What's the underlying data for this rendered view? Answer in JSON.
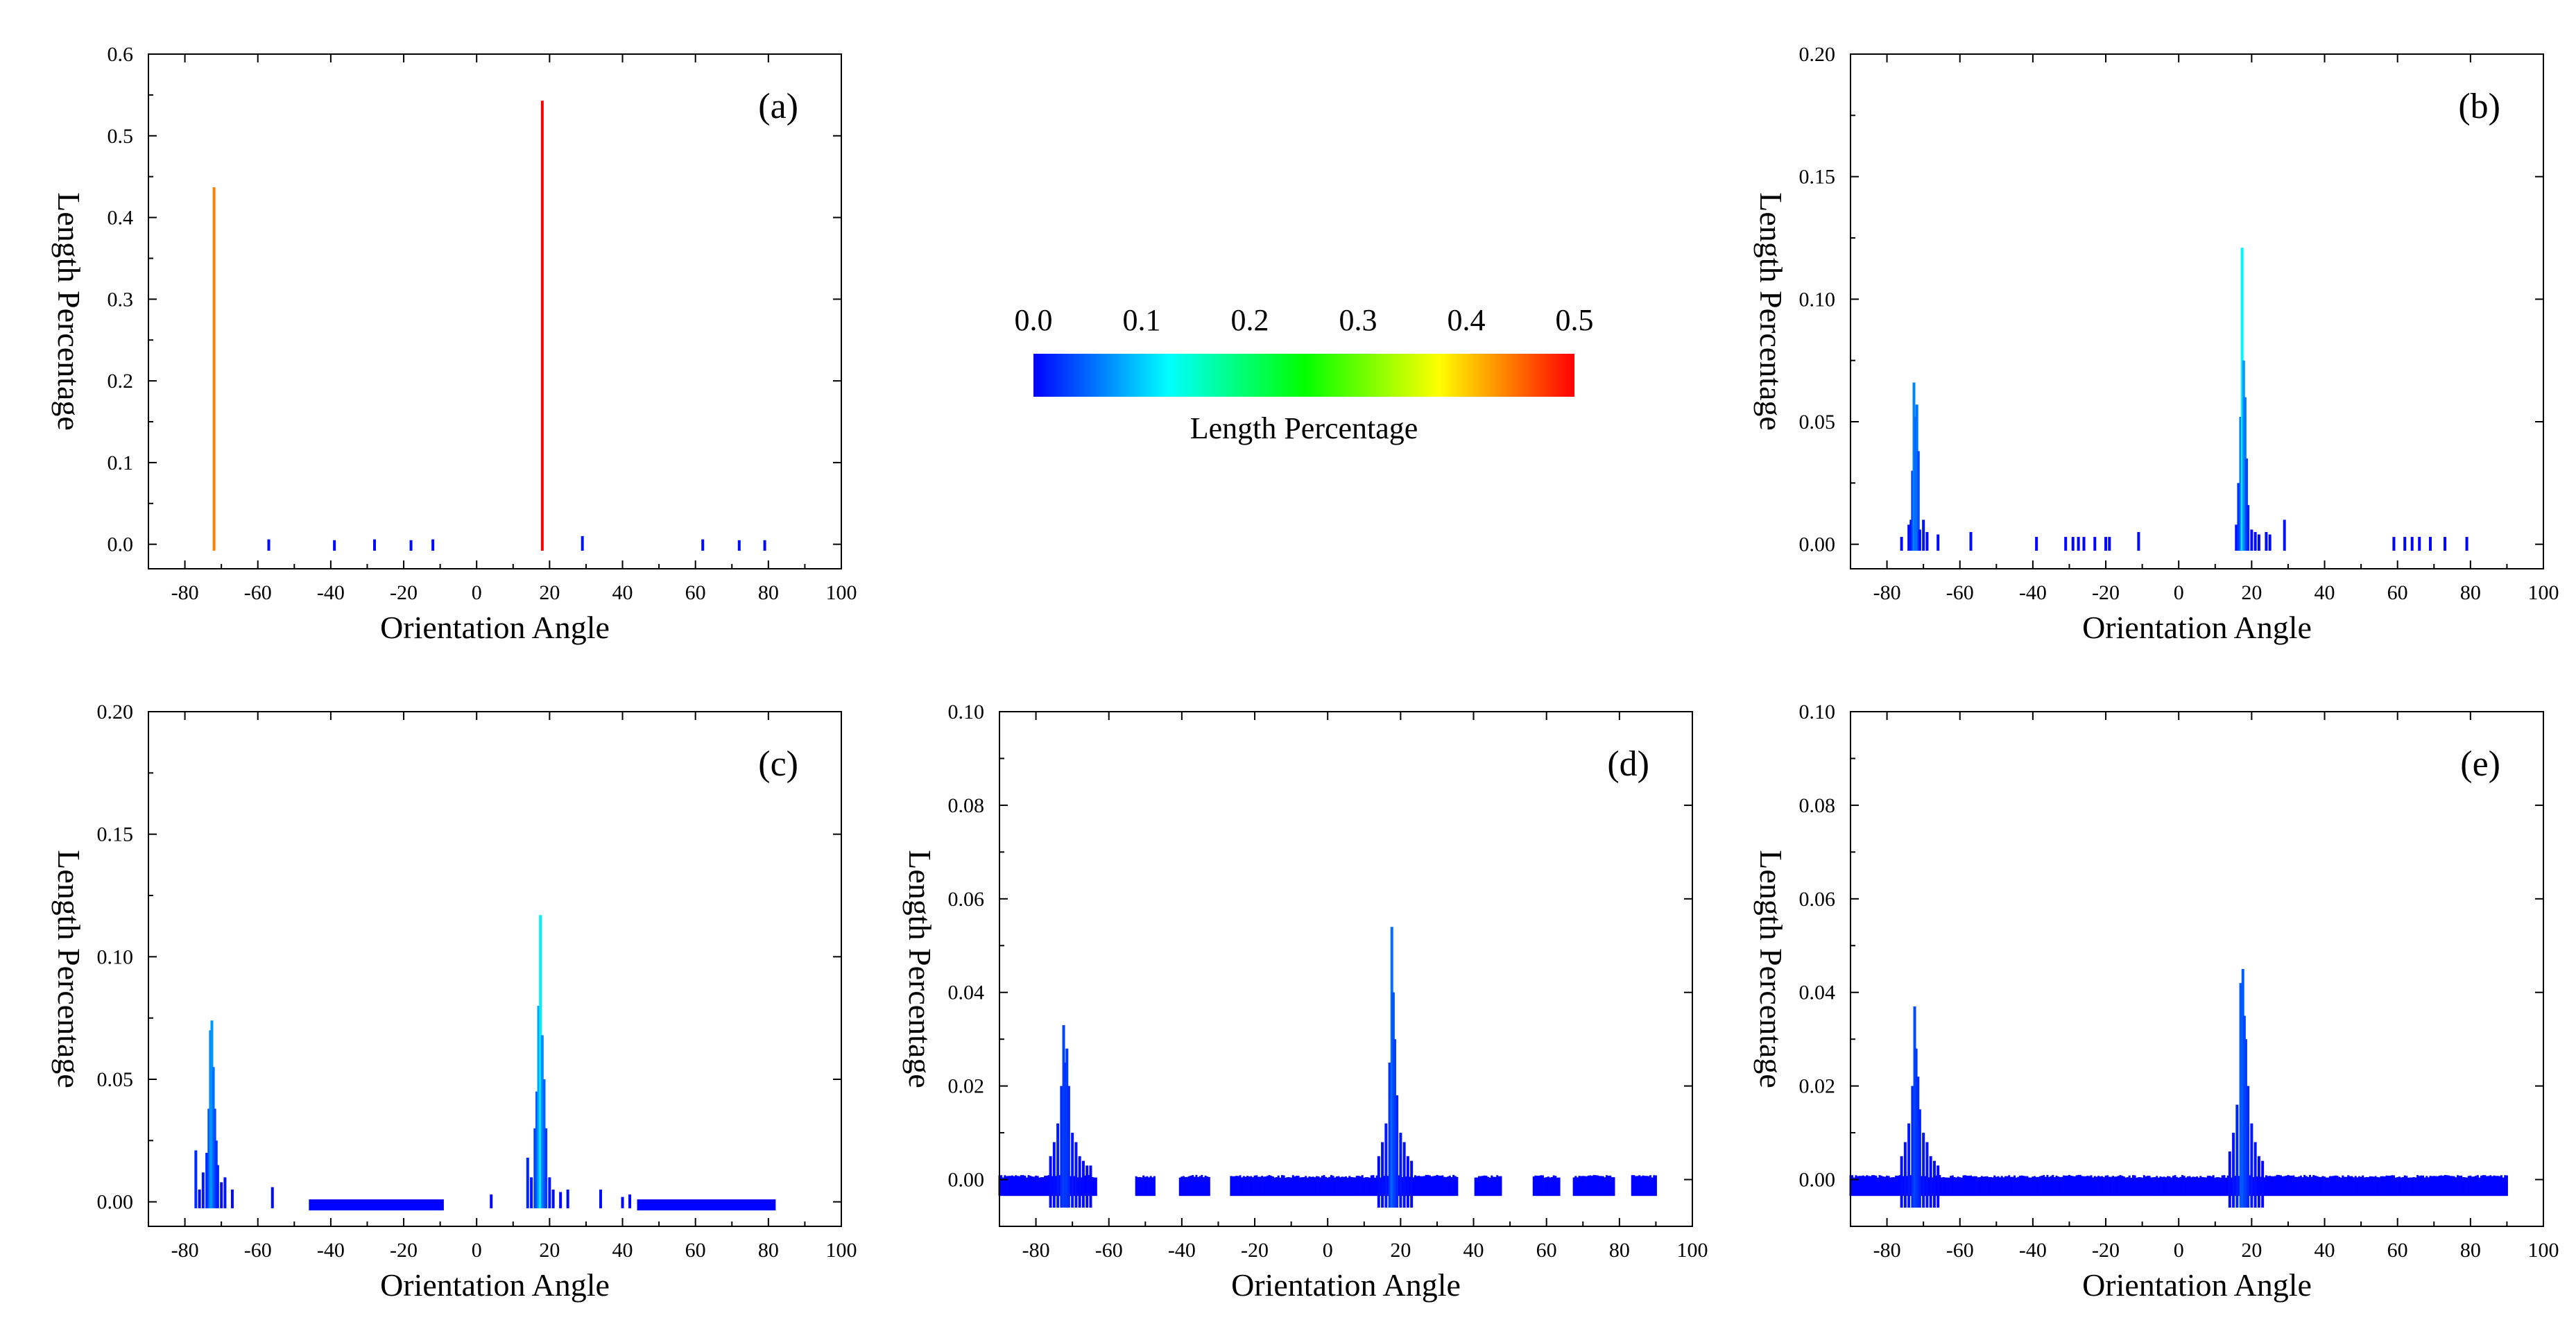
{
  "colorbar": {
    "title": "Length Percentage",
    "ticks": [
      "0.0",
      "0.1",
      "0.2",
      "0.3",
      "0.4",
      "0.5"
    ],
    "range": [
      0,
      0.5
    ],
    "stops": [
      "#0000ff",
      "#00ffff",
      "#00ff00",
      "#ffff00",
      "#ff0000"
    ]
  },
  "chart_data": [
    {
      "type": "bar",
      "panel": "(a)",
      "xlabel": "Orientation Angle",
      "ylabel": "Length Percentage",
      "xlim": [
        -90,
        100
      ],
      "ylim": [
        -0.03,
        0.6
      ],
      "xticks": [
        -80,
        -60,
        -40,
        -20,
        0,
        20,
        40,
        60,
        80,
        100
      ],
      "yticks": [
        0.0,
        0.1,
        0.2,
        0.3,
        0.4,
        0.5,
        0.6
      ],
      "ytick_labels": [
        "0.0",
        "0.1",
        "0.2",
        "0.3",
        "0.4",
        "0.5",
        "0.6"
      ],
      "x": [
        -72,
        18,
        -57,
        -39,
        -28,
        -18,
        -12,
        29,
        62,
        72,
        79
      ],
      "y": [
        0.437,
        0.543,
        0.006,
        0.005,
        0.006,
        0.005,
        0.006,
        0.01,
        0.006,
        0.005,
        0.005
      ]
    },
    {
      "type": "bar",
      "panel": "(b)",
      "xlabel": "Orientation Angle",
      "ylabel": "Length Percentage",
      "xlim": [
        -90,
        100
      ],
      "ylim": [
        -0.01,
        0.2
      ],
      "xticks": [
        -80,
        -60,
        -40,
        -20,
        0,
        20,
        40,
        60,
        80,
        100
      ],
      "yticks": [
        0.0,
        0.05,
        0.1,
        0.15,
        0.2
      ],
      "ytick_labels": [
        "0.00",
        "0.05",
        "0.10",
        "0.15",
        "0.20"
      ],
      "x": [
        -76,
        -74,
        -73.4,
        -73,
        -72.6,
        -72.2,
        -71.8,
        -71.4,
        -71,
        -70,
        -69,
        -66,
        -57,
        -39,
        -31,
        -29,
        -27.5,
        -26,
        -23,
        -20,
        -19,
        -11,
        15.8,
        16.4,
        17,
        17.4,
        17.8,
        18.2,
        18.6,
        19,
        20,
        21,
        22,
        24,
        25,
        29,
        59,
        62,
        64,
        66,
        69,
        73,
        79
      ],
      "y": [
        0.003,
        0.008,
        0.01,
        0.03,
        0.066,
        0.052,
        0.057,
        0.038,
        0.006,
        0.01,
        0.005,
        0.004,
        0.005,
        0.003,
        0.003,
        0.003,
        0.003,
        0.003,
        0.003,
        0.003,
        0.003,
        0.005,
        0.008,
        0.025,
        0.052,
        0.121,
        0.075,
        0.06,
        0.035,
        0.016,
        0.006,
        0.005,
        0.004,
        0.005,
        0.004,
        0.01,
        0.003,
        0.003,
        0.003,
        0.003,
        0.003,
        0.003,
        0.003
      ]
    },
    {
      "type": "bar",
      "panel": "(c)",
      "xlabel": "Orientation Angle",
      "ylabel": "Length Percentage",
      "xlim": [
        -90,
        100
      ],
      "ylim": [
        -0.01,
        0.2
      ],
      "xticks": [
        -80,
        -60,
        -40,
        -20,
        0,
        20,
        40,
        60,
        80,
        100
      ],
      "yticks": [
        0.0,
        0.05,
        0.1,
        0.15,
        0.2
      ],
      "ytick_labels": [
        "0.00",
        "0.05",
        "0.10",
        "0.15",
        "0.20"
      ],
      "x": [
        -77,
        -76,
        -75,
        -74,
        -73.4,
        -73,
        -72.6,
        -72.2,
        -71.8,
        -71.4,
        -71,
        -70,
        -69,
        -67,
        -56,
        4,
        14,
        15,
        16,
        16.5,
        17,
        17.5,
        18,
        18.5,
        19,
        20,
        21,
        23,
        25,
        34,
        40,
        42
      ],
      "y": [
        0.021,
        0.005,
        0.012,
        0.02,
        0.038,
        0.07,
        0.074,
        0.055,
        0.038,
        0.025,
        0.015,
        0.008,
        0.01,
        0.005,
        0.006,
        0.003,
        0.018,
        0.01,
        0.03,
        0.045,
        0.08,
        0.117,
        0.068,
        0.05,
        0.03,
        0.01,
        0.005,
        0.004,
        0.005,
        0.005,
        0.002,
        0.003
      ],
      "bands": [
        {
          "from": -46,
          "to": -9,
          "height": 0.001
        },
        {
          "from": 44,
          "to": 82,
          "height": 0.001
        }
      ]
    },
    {
      "type": "bar",
      "panel": "(d)",
      "xlabel": "Orientation Angle",
      "ylabel": "Length Percentage",
      "xlim": [
        -90,
        100
      ],
      "ylim": [
        -0.01,
        0.1
      ],
      "xticks": [
        -80,
        -60,
        -40,
        -20,
        0,
        20,
        40,
        60,
        80,
        100
      ],
      "yticks": [
        0.0,
        0.02,
        0.04,
        0.06,
        0.08,
        0.1
      ],
      "ytick_labels": [
        "0.00",
        "0.02",
        "0.04",
        "0.06",
        "0.08",
        "0.10"
      ],
      "x": [
        -76,
        -75,
        -74,
        -73,
        -72.4,
        -72,
        -71.5,
        -71,
        -70,
        -69,
        -68,
        -67,
        -66,
        -65,
        14,
        15,
        16,
        17,
        17.6,
        18,
        18.4,
        19,
        20,
        21,
        22,
        23
      ],
      "y": [
        0.005,
        0.008,
        0.012,
        0.02,
        0.033,
        0.025,
        0.028,
        0.02,
        0.01,
        0.008,
        0.005,
        0.004,
        0.003,
        0.003,
        0.005,
        0.008,
        0.012,
        0.025,
        0.054,
        0.04,
        0.03,
        0.018,
        0.01,
        0.008,
        0.005,
        0.004
      ],
      "noise": {
        "from": -90,
        "to": 90,
        "step": 0.5,
        "height": 0.001,
        "gaps": [
          [
            -63,
            -53
          ],
          [
            -47,
            -41
          ],
          [
            -32,
            -27
          ],
          [
            36,
            40
          ],
          [
            48,
            56
          ],
          [
            64,
            67
          ],
          [
            79,
            83
          ]
        ]
      }
    },
    {
      "type": "bar",
      "panel": "(e)",
      "xlabel": "Orientation Angle",
      "ylabel": "Length Percentage",
      "xlim": [
        -90,
        100
      ],
      "ylim": [
        -0.01,
        0.1
      ],
      "xticks": [
        -80,
        -60,
        -40,
        -20,
        0,
        20,
        40,
        60,
        80,
        100
      ],
      "yticks": [
        0.0,
        0.02,
        0.04,
        0.06,
        0.08,
        0.1
      ],
      "ytick_labels": [
        "0.00",
        "0.02",
        "0.04",
        "0.06",
        "0.08",
        "0.10"
      ],
      "x": [
        -76,
        -75,
        -74,
        -73,
        -72.4,
        -72,
        -71.5,
        -71,
        -70,
        -69,
        -68,
        -67,
        -66,
        14,
        15,
        16,
        17,
        17.6,
        18,
        18.4,
        19,
        20,
        21,
        22,
        23
      ],
      "y": [
        0.005,
        0.008,
        0.012,
        0.02,
        0.037,
        0.028,
        0.022,
        0.015,
        0.01,
        0.008,
        0.005,
        0.004,
        0.003,
        0.006,
        0.01,
        0.016,
        0.042,
        0.045,
        0.035,
        0.03,
        0.02,
        0.012,
        0.008,
        0.005,
        0.004
      ],
      "noise": {
        "from": -90,
        "to": 90,
        "step": 0.5,
        "height": 0.001,
        "gaps": []
      }
    }
  ]
}
